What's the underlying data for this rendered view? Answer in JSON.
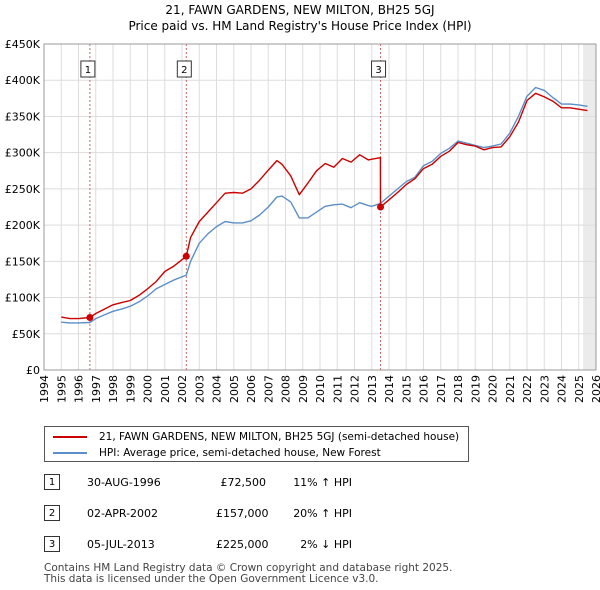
{
  "title_line1": "21, FAWN GARDENS, NEW MILTON, BH25 5GJ",
  "title_line2": "Price paid vs. HM Land Registry's House Price Index (HPI)",
  "chart_data": {
    "type": "line",
    "xlim": [
      1994,
      2026
    ],
    "ylim": [
      0,
      450000
    ],
    "x_ticks": [
      1994,
      1995,
      1996,
      1997,
      1998,
      1999,
      2000,
      2001,
      2002,
      2003,
      2004,
      2005,
      2006,
      2007,
      2008,
      2009,
      2010,
      2011,
      2012,
      2013,
      2014,
      2015,
      2016,
      2017,
      2018,
      2019,
      2020,
      2021,
      2022,
      2023,
      2024,
      2025,
      2026
    ],
    "y_ticks": [
      {
        "value": 0,
        "label": "£0"
      },
      {
        "value": 50000,
        "label": "£50K"
      },
      {
        "value": 100000,
        "label": "£100K"
      },
      {
        "value": 150000,
        "label": "£150K"
      },
      {
        "value": 200000,
        "label": "£200K"
      },
      {
        "value": 250000,
        "label": "£250K"
      },
      {
        "value": 300000,
        "label": "£300K"
      },
      {
        "value": 350000,
        "label": "£350K"
      },
      {
        "value": 400000,
        "label": "£400K"
      },
      {
        "value": 450000,
        "label": "£450K"
      }
    ],
    "shaded_region_start": 2025.25,
    "series": [
      {
        "name": "21, FAWN GARDENS, NEW MILTON, BH25 5GJ (semi-detached house)",
        "color": "#cc0000",
        "x": [
          1995.0,
          1995.5,
          1996.0,
          1996.66,
          1997.0,
          1997.5,
          1998.0,
          1998.5,
          1999.0,
          1999.5,
          2000.0,
          2000.5,
          2001.0,
          2001.5,
          2002.25,
          2002.5,
          2003.0,
          2003.5,
          2004.0,
          2004.5,
          2005.0,
          2005.5,
          2006.0,
          2006.5,
          2007.0,
          2007.5,
          2007.8,
          2008.3,
          2008.8,
          2009.3,
          2009.8,
          2010.3,
          2010.8,
          2011.3,
          2011.8,
          2012.3,
          2012.8,
          2013.0,
          2013.5,
          2013.51,
          2014.0,
          2014.5,
          2015.0,
          2015.5,
          2016.0,
          2016.5,
          2017.0,
          2017.5,
          2018.0,
          2018.5,
          2019.0,
          2019.5,
          2020.0,
          2020.5,
          2021.0,
          2021.5,
          2022.0,
          2022.5,
          2023.0,
          2023.5,
          2024.0,
          2024.5,
          2025.0,
          2025.5
        ],
        "y": [
          73000,
          71000,
          71000,
          72500,
          78000,
          84000,
          90000,
          93000,
          96000,
          103000,
          112000,
          122000,
          136000,
          143000,
          157000,
          183000,
          205000,
          218000,
          231000,
          244000,
          245000,
          244000,
          250000,
          262000,
          276000,
          289000,
          284000,
          268000,
          242000,
          258000,
          275000,
          285000,
          280000,
          292000,
          287000,
          297000,
          290000,
          291000,
          293000,
          225000,
          235000,
          245000,
          256000,
          264000,
          278000,
          284000,
          295000,
          302000,
          314000,
          311000,
          309000,
          304000,
          307000,
          308000,
          322000,
          342000,
          372000,
          382000,
          377000,
          371000,
          362000,
          362000,
          360000,
          358000
        ]
      },
      {
        "name": "HPI: Average price, semi-detached house, New Forest",
        "color": "#5b8fc7",
        "x": [
          1995.0,
          1995.5,
          1996.0,
          1996.66,
          1997.0,
          1997.5,
          1998.0,
          1998.5,
          1999.0,
          1999.5,
          2000.0,
          2000.5,
          2001.0,
          2001.5,
          2002.25,
          2002.5,
          2003.0,
          2003.5,
          2004.0,
          2004.5,
          2005.0,
          2005.5,
          2006.0,
          2006.5,
          2007.0,
          2007.5,
          2007.8,
          2008.3,
          2008.8,
          2009.3,
          2009.8,
          2010.3,
          2010.8,
          2011.3,
          2011.8,
          2012.3,
          2012.8,
          2013.0,
          2013.5,
          2014.0,
          2014.5,
          2015.0,
          2015.5,
          2016.0,
          2016.5,
          2017.0,
          2017.5,
          2018.0,
          2018.5,
          2019.0,
          2019.5,
          2020.0,
          2020.5,
          2021.0,
          2021.5,
          2022.0,
          2022.5,
          2023.0,
          2023.5,
          2024.0,
          2024.5,
          2025.0,
          2025.5
        ],
        "y": [
          66000,
          65000,
          65000,
          65500,
          71000,
          76000,
          81000,
          84000,
          88000,
          94000,
          102000,
          112000,
          118000,
          124000,
          131000,
          150000,
          175000,
          188000,
          198000,
          205000,
          203000,
          203000,
          206000,
          214000,
          225000,
          239000,
          240000,
          232000,
          210000,
          210000,
          218000,
          226000,
          228000,
          229000,
          224000,
          231000,
          227000,
          226000,
          230000,
          240000,
          250000,
          260000,
          266000,
          282000,
          288000,
          299000,
          306000,
          316000,
          313000,
          310000,
          307000,
          309000,
          312000,
          327000,
          350000,
          378000,
          390000,
          386000,
          376000,
          367000,
          367000,
          366000,
          364000
        ]
      }
    ],
    "annotations": [
      {
        "label": "1",
        "x": 1996.66,
        "y": 72500
      },
      {
        "label": "2",
        "x": 2002.25,
        "y": 157000
      },
      {
        "label": "3",
        "x": 2013.51,
        "y": 225000
      }
    ]
  },
  "legend": {
    "price_paid": "21, FAWN GARDENS, NEW MILTON, BH25 5GJ (semi-detached house)",
    "hpi": "HPI: Average price, semi-detached house, New Forest"
  },
  "sales": [
    {
      "num": "1",
      "date": "30-AUG-1996",
      "price": "£72,500",
      "hpi": "11% ↑ HPI"
    },
    {
      "num": "2",
      "date": "02-APR-2002",
      "price": "£157,000",
      "hpi": "20% ↑ HPI"
    },
    {
      "num": "3",
      "date": "05-JUL-2013",
      "price": "£225,000",
      "hpi": "2% ↓ HPI"
    }
  ],
  "footer_line1": "Contains HM Land Registry data © Crown copyright and database right 2025.",
  "footer_line2": "This data is licensed under the Open Government Licence v3.0.",
  "colors": {
    "price_line": "#cc0000",
    "hpi_line": "#5b8fc7",
    "grid": "#dddddd",
    "marker_vline": "#cc6666"
  }
}
